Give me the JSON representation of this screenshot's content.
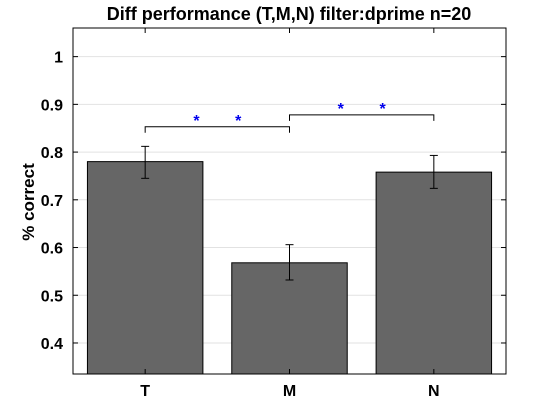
{
  "chart_data": {
    "type": "bar",
    "title": "Diff performance (T,M,N) filter:dprime n=20",
    "xlabel": "",
    "ylabel": "% correct",
    "categories": [
      "T",
      "M",
      "N"
    ],
    "values": [
      0.78,
      0.568,
      0.758
    ],
    "error_low": [
      0.745,
      0.532,
      0.724
    ],
    "error_high": [
      0.812,
      0.606,
      0.793
    ],
    "ylim": [
      0.335,
      1.06
    ],
    "yticks": [
      0.4,
      0.5,
      0.6,
      0.7,
      0.8,
      0.9,
      1
    ],
    "ytick_labels": [
      "0.4",
      "0.5",
      "0.6",
      "0.7",
      "0.8",
      "0.9",
      "1"
    ],
    "grid": true,
    "bar_color": "#666666",
    "significance": [
      {
        "from": "T",
        "to": "M",
        "y": 0.853,
        "label": "* *"
      },
      {
        "from": "M",
        "to": "N",
        "y": 0.878,
        "label": "* *"
      }
    ],
    "significance_color": "#0000ee"
  }
}
